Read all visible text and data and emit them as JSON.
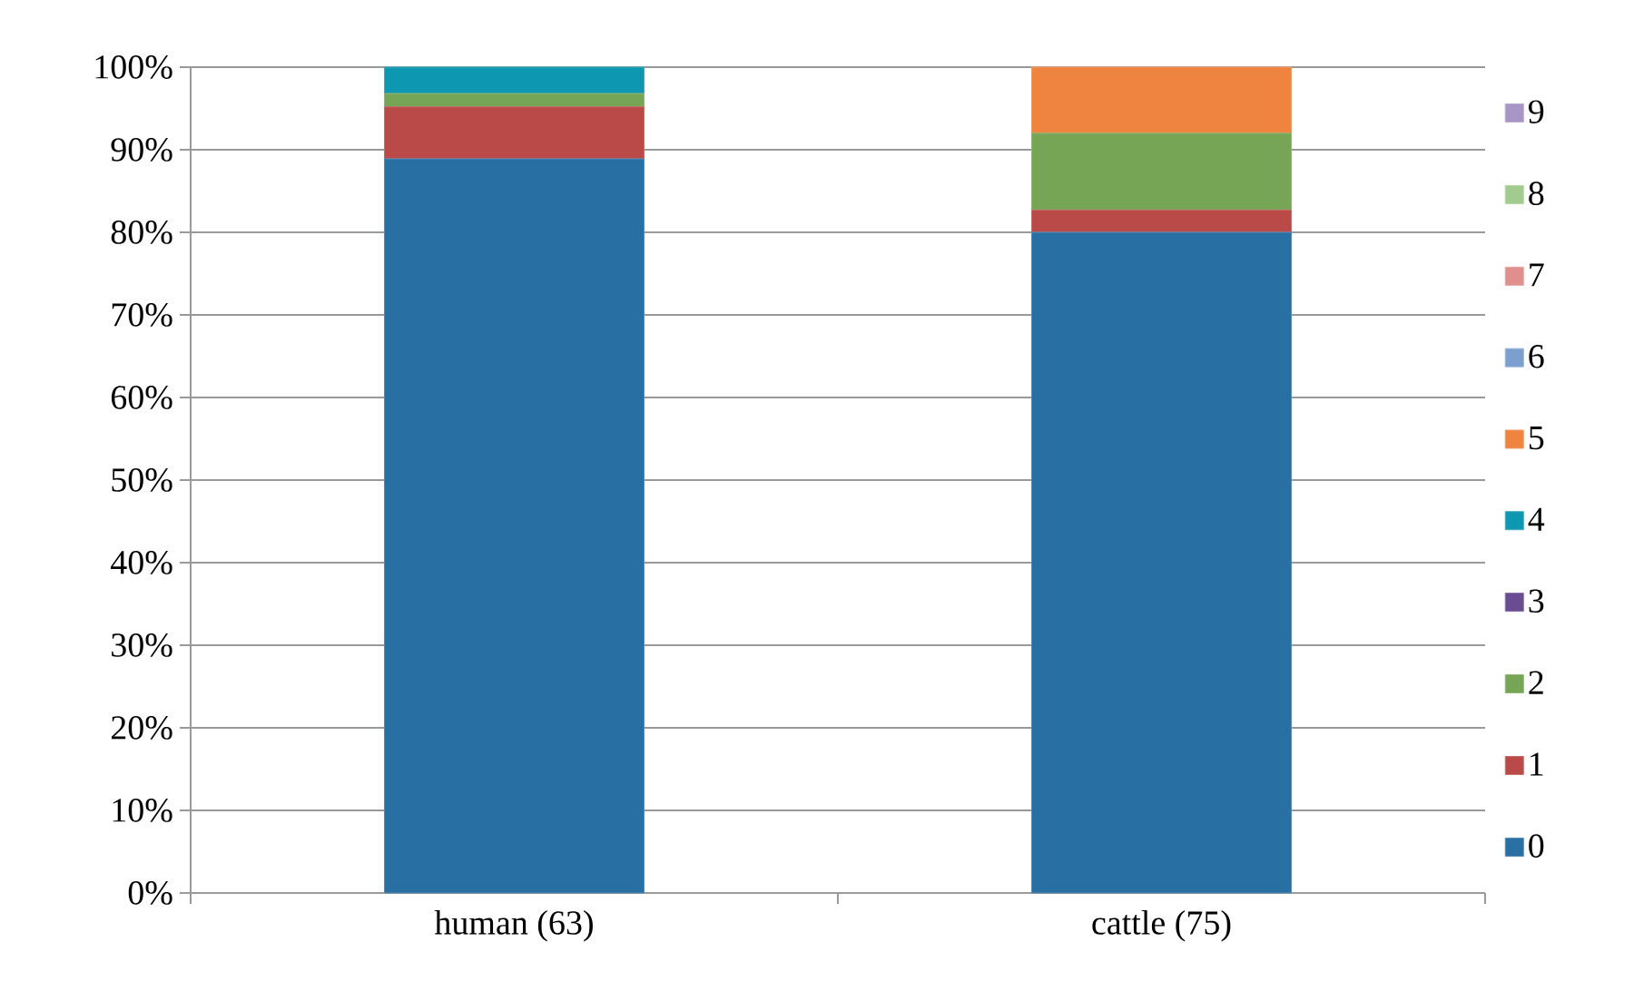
{
  "chart_data": {
    "type": "bar",
    "stacked": true,
    "categories": [
      "human (63)",
      "cattle (75)"
    ],
    "series": [
      {
        "name": "0",
        "color": "#2870a4",
        "values": [
          88.9,
          80.0
        ]
      },
      {
        "name": "1",
        "color": "#b94a48",
        "values": [
          6.3,
          2.7
        ]
      },
      {
        "name": "2",
        "color": "#76a556",
        "values": [
          1.6,
          9.3
        ]
      },
      {
        "name": "3",
        "color": "#6a4c93",
        "values": [
          0,
          0
        ]
      },
      {
        "name": "4",
        "color": "#0e97b0",
        "values": [
          3.2,
          0
        ]
      },
      {
        "name": "5",
        "color": "#ee8440",
        "values": [
          0,
          8.0
        ]
      },
      {
        "name": "6",
        "color": "#7ba0d0",
        "values": [
          0,
          0
        ]
      },
      {
        "name": "7",
        "color": "#e08f8c",
        "values": [
          0,
          0
        ]
      },
      {
        "name": "8",
        "color": "#a2cc8f",
        "values": [
          0,
          0
        ]
      },
      {
        "name": "9",
        "color": "#a795c6",
        "values": [
          0,
          0
        ]
      }
    ],
    "ylim": [
      0,
      100
    ],
    "yticks": [
      {
        "value": 0,
        "label": "0%"
      },
      {
        "value": 10,
        "label": "10%"
      },
      {
        "value": 20,
        "label": "20%"
      },
      {
        "value": 30,
        "label": "30%"
      },
      {
        "value": 40,
        "label": "40%"
      },
      {
        "value": 50,
        "label": "50%"
      },
      {
        "value": 60,
        "label": "60%"
      },
      {
        "value": 70,
        "label": "70%"
      },
      {
        "value": 80,
        "label": "80%"
      },
      {
        "value": 90,
        "label": "90%"
      },
      {
        "value": 100,
        "label": "100%"
      }
    ],
    "grid": "y",
    "legend": "right"
  }
}
